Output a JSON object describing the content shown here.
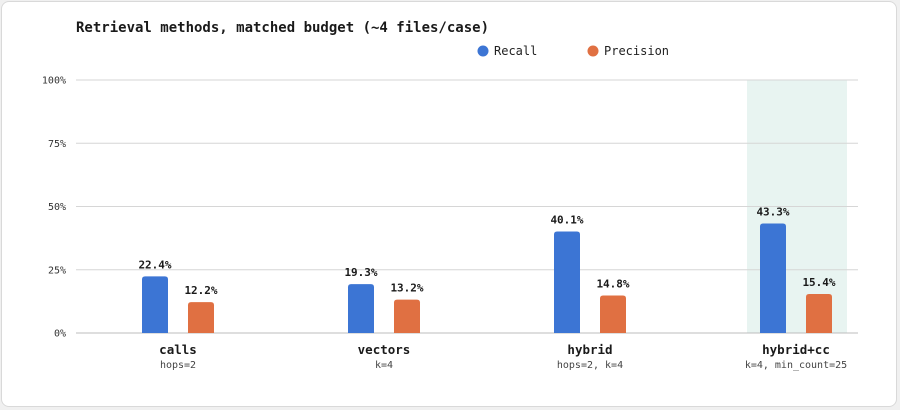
{
  "chart_data": {
    "type": "bar",
    "title": "Retrieval methods, matched budget (~4 files/case)",
    "categories": [
      "calls",
      "vectors",
      "hybrid",
      "hybrid+cc"
    ],
    "category_subtitles": [
      "hops=2",
      "k=4",
      "hops=2, k=4",
      "k=4, min_count=25"
    ],
    "series": [
      {
        "name": "Recall",
        "color": "#3c75d4",
        "values": [
          22.4,
          19.3,
          40.1,
          43.3
        ],
        "labels": [
          "22.4%",
          "19.3%",
          "40.1%",
          "43.3%"
        ]
      },
      {
        "name": "Precision",
        "color": "#e07042",
        "values": [
          12.2,
          13.2,
          14.8,
          15.4
        ],
        "labels": [
          "12.2%",
          "13.2%",
          "14.8%",
          "15.4%"
        ]
      }
    ],
    "ylim": [
      0,
      100
    ],
    "yticks": [
      0,
      25,
      50,
      75,
      100
    ],
    "ytick_labels": [
      "0%",
      "25%",
      "50%",
      "75%",
      "100%"
    ],
    "xlabel": "",
    "ylabel": "",
    "grid": true,
    "legend_position": "top-center",
    "highlighted_category": "hybrid+cc",
    "highlight_color": "#e8f4f1"
  }
}
